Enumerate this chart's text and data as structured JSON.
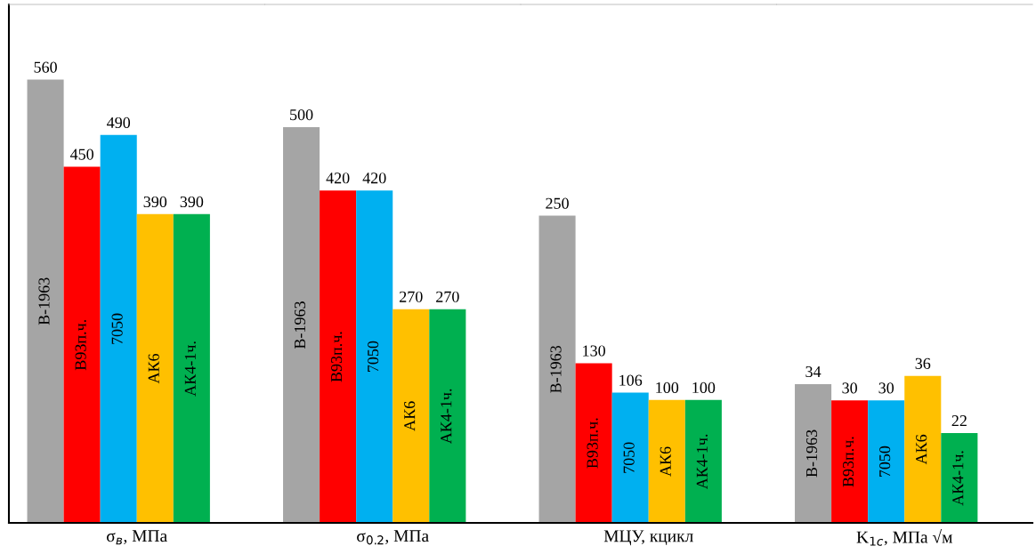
{
  "chart_data": [
    {
      "type": "bar",
      "xlabel": "σ$_{в}$, МПа",
      "categories": [
        null
      ],
      "ylim": [
        0,
        655
      ],
      "data_labels": true,
      "legend": false,
      "grid": false,
      "series": [
        {
          "name": "В-1963",
          "color": "#a5a5a5",
          "values": [
            560
          ]
        },
        {
          "name": "В93п.ч.",
          "color": "#ff0000",
          "values": [
            450
          ]
        },
        {
          "name": "7050",
          "color": "#00b0f0",
          "values": [
            490
          ]
        },
        {
          "name": "АК6",
          "color": "#ffc000",
          "values": [
            390
          ]
        },
        {
          "name": "АК4-1ч.",
          "color": "#00b050",
          "values": [
            390
          ]
        }
      ]
    },
    {
      "type": "bar",
      "xlabel": "σ$_{0.2}$, МПа",
      "categories": [
        null
      ],
      "ylim": [
        0,
        655
      ],
      "data_labels": true,
      "legend": false,
      "grid": false,
      "series": [
        {
          "name": "В-1963",
          "color": "#a5a5a5",
          "values": [
            500
          ]
        },
        {
          "name": "В93п.ч.",
          "color": "#ff0000",
          "values": [
            420
          ]
        },
        {
          "name": "7050",
          "color": "#00b0f0",
          "values": [
            420
          ]
        },
        {
          "name": "АК6",
          "color": "#ffc000",
          "values": [
            270
          ]
        },
        {
          "name": "АК4-1ч.",
          "color": "#00b050",
          "values": [
            270
          ]
        }
      ]
    },
    {
      "type": "bar",
      "xlabel": "МЦУ, кцикл",
      "categories": [
        null
      ],
      "ylim": [
        0,
        422
      ],
      "data_labels": true,
      "legend": false,
      "grid": false,
      "series": [
        {
          "name": "В-1963",
          "color": "#a5a5a5",
          "values": [
            250
          ]
        },
        {
          "name": "В93п.ч.",
          "color": "#ff0000",
          "values": [
            130
          ]
        },
        {
          "name": "7050",
          "color": "#00b0f0",
          "values": [
            106
          ]
        },
        {
          "name": "АК6",
          "color": "#ffc000",
          "values": [
            100
          ]
        },
        {
          "name": "АК4-1ч.",
          "color": "#00b050",
          "values": [
            100
          ]
        }
      ]
    },
    {
      "type": "bar",
      "xlabel": "K$_{1c}$, МПа √м",
      "categories": [
        null
      ],
      "ylim": [
        0,
        127
      ],
      "data_labels": true,
      "legend": false,
      "grid": false,
      "series": [
        {
          "name": "В-1963",
          "color": "#a5a5a5",
          "values": [
            34
          ]
        },
        {
          "name": "В93п.ч.",
          "color": "#ff0000",
          "values": [
            30
          ]
        },
        {
          "name": "7050",
          "color": "#00b0f0",
          "values": [
            30
          ]
        },
        {
          "name": "АК6",
          "color": "#ffc000",
          "values": [
            36
          ]
        },
        {
          "name": "АК4-1ч.",
          "color": "#00b050",
          "values": [
            22
          ]
        }
      ]
    }
  ]
}
